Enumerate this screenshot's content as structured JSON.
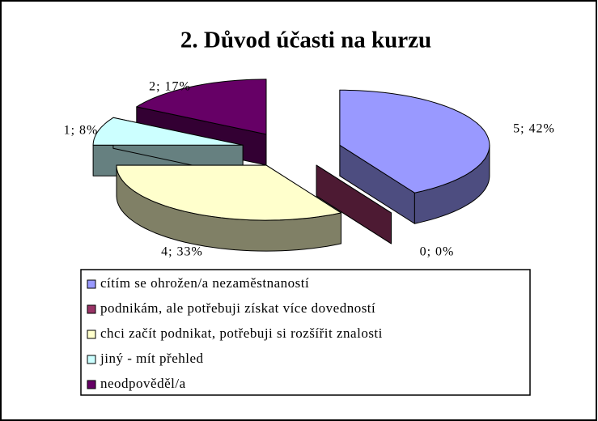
{
  "chart_data": {
    "type": "pie3d",
    "title": "2. Důvod účasti na kurzu",
    "categories": [
      "cítím se ohrožen/a nezaměstnaností",
      "podnikám, ale potřebuji získat více dovedností",
      "chci začít podnikat, potřebuji si rozšířit znalosti",
      "jiný - mít přehled",
      "neodpověděl/a"
    ],
    "values": [
      5,
      0,
      4,
      1,
      2
    ],
    "value_labels": [
      "5; 42%",
      "0; 0%",
      "4; 33%",
      "1; 8%",
      "2; 17%"
    ],
    "colors": [
      "#9999ff",
      "#993366",
      "#ffffcc",
      "#ccffff",
      "#660066"
    ],
    "legend": "bottom"
  }
}
